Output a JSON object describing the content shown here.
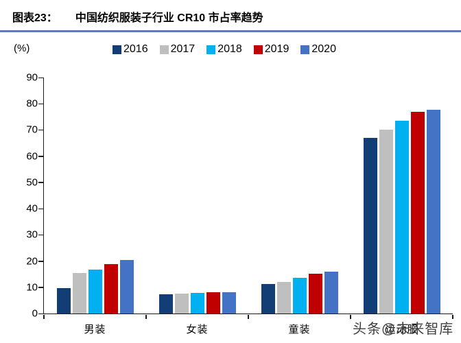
{
  "header": {
    "figure_label": "图表23：",
    "title": "中国纺织服装子行业 CR10 市占率趋势",
    "rule_color": "#5b7db1"
  },
  "watermark": "头条@未来智库",
  "chart_data": {
    "type": "bar",
    "title": "中国纺织服装子行业 CR10 市占率趋势",
    "xlabel": "",
    "ylabel": "(%)",
    "ylim": [
      0,
      90
    ],
    "yticks": [
      0,
      10,
      20,
      30,
      40,
      50,
      60,
      70,
      80,
      90
    ],
    "grid": false,
    "legend_position": "top",
    "categories": [
      "男装",
      "女装",
      "童装",
      "运动服"
    ],
    "series": [
      {
        "name": "2016",
        "color": "#123e75",
        "values": [
          9.8,
          7.3,
          11.3,
          67.0
        ]
      },
      {
        "name": "2017",
        "color": "#bfbfbf",
        "values": [
          15.5,
          7.5,
          12.0,
          70.0
        ]
      },
      {
        "name": "2018",
        "color": "#00b0f0",
        "values": [
          16.7,
          7.8,
          13.5,
          73.5
        ]
      },
      {
        "name": "2019",
        "color": "#c00000",
        "values": [
          18.9,
          8.0,
          15.2,
          77.0
        ]
      },
      {
        "name": "2020",
        "color": "#4472c4",
        "values": [
          20.4,
          8.2,
          15.9,
          77.8
        ]
      }
    ]
  }
}
